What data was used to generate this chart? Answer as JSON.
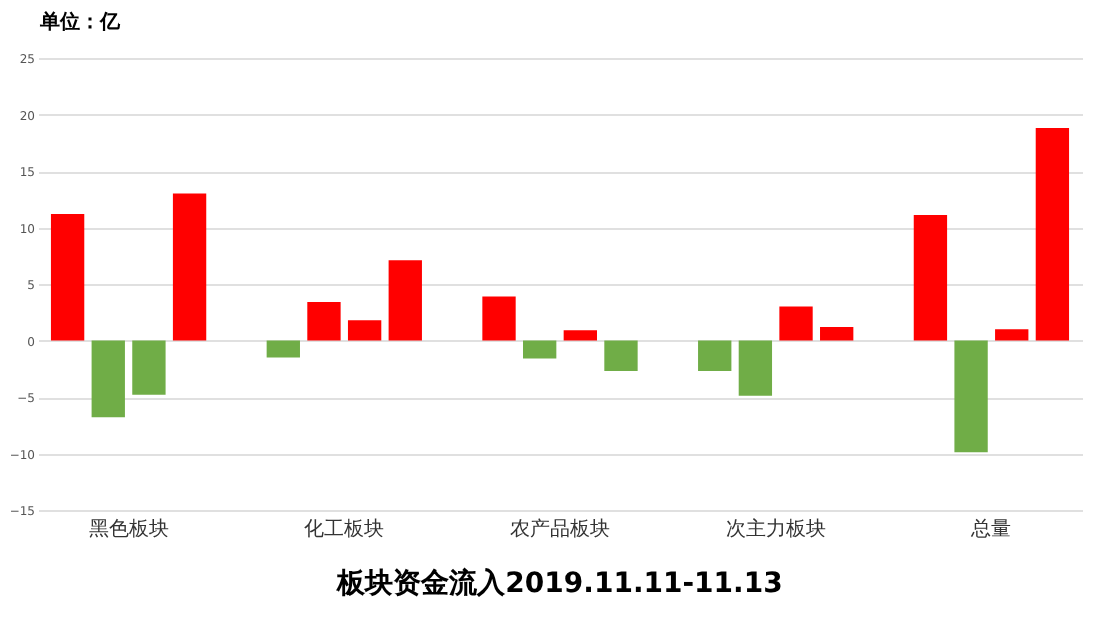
{
  "chart_data": {
    "type": "bar",
    "title": "板块资金流入2019.11.11-11.13",
    "annotations": [
      "单位：亿"
    ],
    "categories": [
      "黑色板块",
      "化工板块",
      "农产品板块",
      "次主力板块",
      "总量"
    ],
    "series": [
      {
        "colors": [
          "#ff0000",
          "#70ad47",
          "#ff0000",
          "#70ad47",
          "#ff0000"
        ],
        "values": [
          11.2,
          -1.5,
          3.9,
          -2.7,
          11.1
        ]
      },
      {
        "colors": [
          "#70ad47",
          "#ff0000",
          "#70ad47",
          "#70ad47",
          "#70ad47"
        ],
        "values": [
          -6.8,
          3.4,
          -1.6,
          -4.9,
          -9.9
        ]
      },
      {
        "colors": [
          "#70ad47",
          "#ff0000",
          "#ff0000",
          "#ff0000",
          "#ff0000"
        ],
        "values": [
          -4.8,
          1.8,
          0.9,
          3.0,
          1.0
        ]
      },
      {
        "colors": [
          "#ff0000",
          "#ff0000",
          "#70ad47",
          "#ff0000",
          "#ff0000"
        ],
        "values": [
          13.0,
          7.1,
          -2.7,
          1.2,
          18.8
        ]
      }
    ],
    "ylim": [
      -15,
      25
    ],
    "yticks": [
      -15,
      -10,
      -5,
      0,
      5,
      10,
      15,
      20,
      25
    ],
    "grid": "y"
  }
}
